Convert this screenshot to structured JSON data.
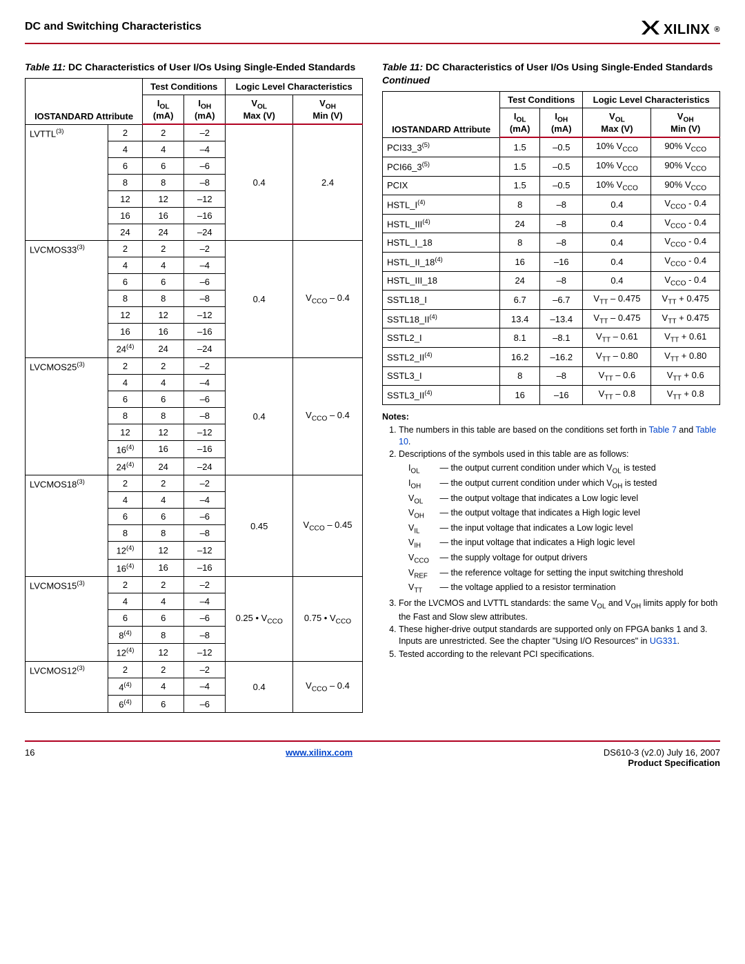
{
  "header": {
    "title": "DC and Switching Characteristics",
    "logo_text": "XILINX",
    "logo_reg": "®"
  },
  "table_left": {
    "caption_lbl": "Table  11:",
    "caption_rest": "DC Characteristics of User I/Os Using Single-Ended Standards",
    "hdr": {
      "test_cond": "Test Conditions",
      "logic_level": "Logic Level Characteristics",
      "iostd": "IOSTANDARD Attribute",
      "iol": "I",
      "iol_sub": "OL",
      "iol_unit": "(mA)",
      "ioh": "I",
      "ioh_sub": "OH",
      "ioh_unit": "(mA)",
      "vol": "V",
      "vol_sub": "OL",
      "vol_unit": "Max (V)",
      "voh": "V",
      "voh_sub": "OH",
      "voh_unit": "Min (V)"
    },
    "groups": [
      {
        "name": "LVTTL",
        "sup": "(3)",
        "vol": "0.4",
        "voh": "2.4",
        "rows": [
          {
            "d": "2",
            "iol": "2",
            "ioh": "–2"
          },
          {
            "d": "4",
            "iol": "4",
            "ioh": "–4"
          },
          {
            "d": "6",
            "iol": "6",
            "ioh": "–6"
          },
          {
            "d": "8",
            "iol": "8",
            "ioh": "–8"
          },
          {
            "d": "12",
            "iol": "12",
            "ioh": "–12"
          },
          {
            "d": "16",
            "iol": "16",
            "ioh": "–16"
          },
          {
            "d": "24",
            "iol": "24",
            "ioh": "–24"
          }
        ]
      },
      {
        "name": "LVCMOS33",
        "sup": "(3)",
        "vol": "0.4",
        "voh_html": "V<sub>CCO</sub> – 0.4",
        "rows": [
          {
            "d": "2",
            "iol": "2",
            "ioh": "–2"
          },
          {
            "d": "4",
            "iol": "4",
            "ioh": "–4"
          },
          {
            "d": "6",
            "iol": "6",
            "ioh": "–6"
          },
          {
            "d": "8",
            "iol": "8",
            "ioh": "–8"
          },
          {
            "d": "12",
            "iol": "12",
            "ioh": "–12"
          },
          {
            "d": "16",
            "iol": "16",
            "ioh": "–16"
          },
          {
            "d_html": "24<sup>(4)</sup>",
            "iol": "24",
            "ioh": "–24"
          }
        ]
      },
      {
        "name": "LVCMOS25",
        "sup": "(3)",
        "vol": "0.4",
        "voh_html": "V<sub>CCO</sub> – 0.4",
        "rows": [
          {
            "d": "2",
            "iol": "2",
            "ioh": "–2"
          },
          {
            "d": "4",
            "iol": "4",
            "ioh": "–4"
          },
          {
            "d": "6",
            "iol": "6",
            "ioh": "–6"
          },
          {
            "d": "8",
            "iol": "8",
            "ioh": "–8"
          },
          {
            "d": "12",
            "iol": "12",
            "ioh": "–12"
          },
          {
            "d_html": "16<sup>(4)</sup>",
            "iol": "16",
            "ioh": "–16"
          },
          {
            "d_html": "24<sup>(4)</sup>",
            "iol": "24",
            "ioh": "–24"
          }
        ]
      },
      {
        "name": "LVCMOS18",
        "sup": "(3)",
        "vol": "0.45",
        "voh_html": "V<sub>CCO</sub> – 0.45",
        "rows": [
          {
            "d": "2",
            "iol": "2",
            "ioh": "–2"
          },
          {
            "d": "4",
            "iol": "4",
            "ioh": "–4"
          },
          {
            "d": "6",
            "iol": "6",
            "ioh": "–6"
          },
          {
            "d": "8",
            "iol": "8",
            "ioh": "–8"
          },
          {
            "d_html": "12<sup>(4)</sup>",
            "iol": "12",
            "ioh": "–12"
          },
          {
            "d_html": "16<sup>(4)</sup>",
            "iol": "16",
            "ioh": "–16"
          }
        ]
      },
      {
        "name": "LVCMOS15",
        "sup": "(3)",
        "vol_html": "0.25 • V<sub>CCO</sub>",
        "voh_html": "0.75 • V<sub>CCO</sub>",
        "rows": [
          {
            "d": "2",
            "iol": "2",
            "ioh": "–2"
          },
          {
            "d": "4",
            "iol": "4",
            "ioh": "–4"
          },
          {
            "d": "6",
            "iol": "6",
            "ioh": "–6"
          },
          {
            "d_html": "8<sup>(4)</sup>",
            "iol": "8",
            "ioh": "–8"
          },
          {
            "d_html": "12<sup>(4)</sup>",
            "iol": "12",
            "ioh": "–12"
          }
        ]
      },
      {
        "name": "LVCMOS12",
        "sup": "(3)",
        "vol": "0.4",
        "voh_html": "V<sub>CCO</sub> – 0.4",
        "rows": [
          {
            "d": "2",
            "iol": "2",
            "ioh": "–2"
          },
          {
            "d_html": "4<sup>(4)</sup>",
            "iol": "4",
            "ioh": "–4"
          },
          {
            "d_html": "6<sup>(4)</sup>",
            "iol": "6",
            "ioh": "–6"
          }
        ]
      }
    ]
  },
  "table_right": {
    "caption_lbl": "Table  11:",
    "caption_rest": "DC Characteristics of User I/Os Using Single-Ended Standards ",
    "caption_cont": "Continued",
    "rows": [
      {
        "name_html": "PCI33_3<sup>(5)</sup>",
        "iol": "1.5",
        "ioh": "–0.5",
        "vol_html": "10% V<sub>CCO</sub>",
        "voh_html": "90% V<sub>CCO</sub>"
      },
      {
        "name_html": "PCI66_3<sup>(5)</sup>",
        "iol": "1.5",
        "ioh": "–0.5",
        "vol_html": "10% V<sub>CCO</sub>",
        "voh_html": "90% V<sub>CCO</sub>"
      },
      {
        "name": "PCIX",
        "iol": "1.5",
        "ioh": "–0.5",
        "vol_html": "10% V<sub>CCO</sub>",
        "voh_html": "90% V<sub>CCO</sub>"
      },
      {
        "name_html": "HSTL_I<sup>(4)</sup>",
        "iol": "8",
        "ioh": "–8",
        "vol": "0.4",
        "voh_html": "V<sub>CCO</sub> - 0.4"
      },
      {
        "name_html": "HSTL_III<sup>(4)</sup>",
        "iol": "24",
        "ioh": "–8",
        "vol": "0.4",
        "voh_html": "V<sub>CCO</sub> - 0.4"
      },
      {
        "name": "HSTL_I_18",
        "iol": "8",
        "ioh": "–8",
        "vol": "0.4",
        "voh_html": "V<sub>CCO</sub> - 0.4"
      },
      {
        "name_html": "HSTL_II_18<sup>(4)</sup>",
        "iol": "16",
        "ioh": "–16",
        "vol": "0.4",
        "voh_html": "V<sub>CCO</sub> - 0.4"
      },
      {
        "name": "HSTL_III_18",
        "iol": "24",
        "ioh": "–8",
        "vol": "0.4",
        "voh_html": "V<sub>CCO</sub> - 0.4"
      },
      {
        "name": "SSTL18_I",
        "iol": "6.7",
        "ioh": "–6.7",
        "vol_html": "V<sub>TT</sub> – 0.475",
        "voh_html": "V<sub>TT</sub> + 0.475"
      },
      {
        "name_html": "SSTL18_II<sup>(4)</sup>",
        "iol": "13.4",
        "ioh": "–13.4",
        "vol_html": "V<sub>TT</sub> – 0.475",
        "voh_html": "V<sub>TT</sub> + 0.475"
      },
      {
        "name": "SSTL2_I",
        "iol": "8.1",
        "ioh": "–8.1",
        "vol_html": "V<sub>TT</sub> – 0.61",
        "voh_html": "V<sub>TT</sub> + 0.61"
      },
      {
        "name_html": "SSTL2_II<sup>(4)</sup>",
        "iol": "16.2",
        "ioh": "–16.2",
        "vol_html": "V<sub>TT</sub> – 0.80",
        "voh_html": "V<sub>TT</sub> + 0.80"
      },
      {
        "name": "SSTL3_I",
        "iol": "8",
        "ioh": "–8",
        "vol_html": "V<sub>TT</sub> – 0.6",
        "voh_html": "V<sub>TT</sub> + 0.6"
      },
      {
        "name_html": "SSTL3_II<sup>(4)</sup>",
        "iol": "16",
        "ioh": "–16",
        "vol_html": "V<sub>TT</sub> – 0.8",
        "voh_html": "V<sub>TT</sub> + 0.8"
      }
    ]
  },
  "notes": {
    "title": "Notes:",
    "n1_a": "The numbers in this table are based on the conditions set forth in ",
    "n1_l1": "Table 7",
    "n1_mid": " and ",
    "n1_l2": "Table 10",
    "n1_end": ".",
    "n2": "Descriptions of the symbols used in this table are as follows:",
    "defs": [
      {
        "sym_html": "I<sub>OL</sub>",
        "txt": "the output current condition under which V",
        "txt_sub": "OL",
        "txt2": " is tested"
      },
      {
        "sym_html": "I<sub>OH</sub>",
        "txt": "the output current condition under which V",
        "txt_sub": "OH",
        "txt2": " is tested"
      },
      {
        "sym_html": "V<sub>OL</sub>",
        "txt": "the output voltage that indicates a Low logic level"
      },
      {
        "sym_html": "V<sub>OH</sub>",
        "txt": "the output voltage that indicates a High logic level"
      },
      {
        "sym_html": "V<sub>IL</sub>",
        "txt": "the input voltage that indicates a Low logic level"
      },
      {
        "sym_html": "V<sub>IH</sub>",
        "txt": "the input voltage that indicates a High logic level"
      },
      {
        "sym_html": "V<sub>CCO</sub>",
        "txt": "the supply voltage for output drivers"
      },
      {
        "sym_html": "V<sub>REF</sub>",
        "txt": "the reference voltage for setting the input switching threshold"
      },
      {
        "sym_html": "V<sub>TT</sub>",
        "txt": "the voltage applied to a resistor termination"
      }
    ],
    "n3_html": "For the LVCMOS and LVTTL standards: the same V<sub>OL</sub> and V<sub>OH</sub> limits apply for both the Fast and Slow slew attributes.",
    "n4_a": "These higher-drive output standards are supported only on FPGA banks 1 and 3. Inputs are unrestricted. See the chapter \"Using I/O Resources\" in ",
    "n4_link": "UG331",
    "n4_end": ".",
    "n5": "Tested according to the relevant PCI specifications."
  },
  "footer": {
    "page": "16",
    "url": "www.xilinx.com",
    "right1": "DS610-3 (v2.0) July 16, 2007",
    "right2": "Product Specification"
  }
}
